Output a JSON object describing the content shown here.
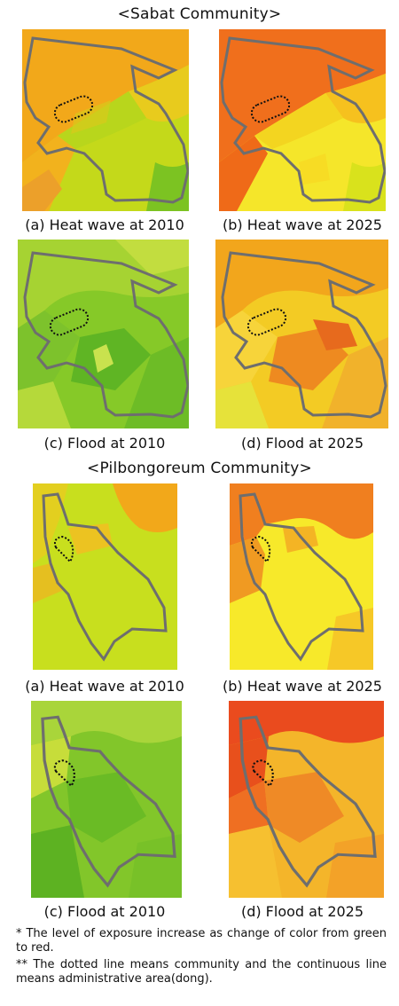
{
  "sabat": {
    "title": "<Sabat Community>",
    "panels": [
      {
        "caption": "(a) Heat wave at 2010",
        "scheme": "heat2010"
      },
      {
        "caption": "(b) Heat wave at 2025",
        "scheme": "heat2025"
      },
      {
        "caption": "(c) Flood at 2010",
        "scheme": "flood2010"
      },
      {
        "caption": "(d) Flood at 2025",
        "scheme": "flood2025"
      }
    ]
  },
  "pilbong": {
    "title": "<Pilbongoreum Community>",
    "panels": [
      {
        "caption": "(a) Heat wave at 2010",
        "scheme": "heat2010"
      },
      {
        "caption": "(b) Heat wave at 2025",
        "scheme": "heat2025"
      },
      {
        "caption": "(c) Flood at 2010",
        "scheme": "flood2010"
      },
      {
        "caption": "(d) Flood at 2025",
        "scheme": "flood2025"
      }
    ]
  },
  "notes": {
    "note1": "* The level of exposure increase as change of color from green to red.",
    "note2": "** The dotted line means community and the continuous line means administrative area(dong)."
  },
  "colors": {
    "admin_boundary": "#6e6e6e",
    "community_boundary": "#111111",
    "low_exposure": "#5fbf2a",
    "high_exposure": "#e8401c"
  }
}
